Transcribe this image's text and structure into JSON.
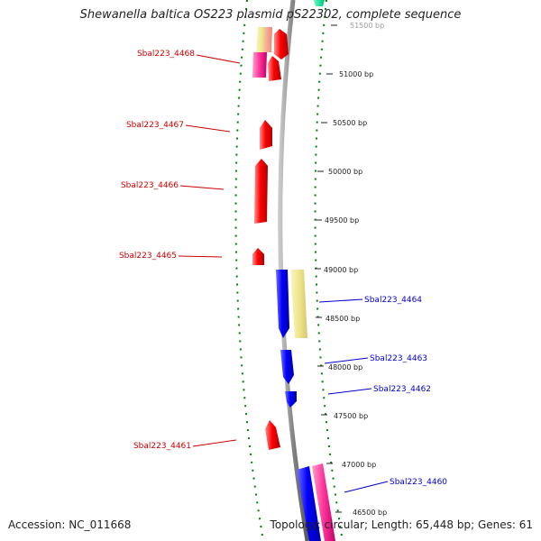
{
  "title": "Shewanella baltica OS223 plasmid pS22302, complete sequence",
  "accession": "Accession: NC_011668",
  "summary": "Topology: circular; Length: 65,448 bp; Genes: 61",
  "colors": {
    "forward": "#ff0000",
    "reverse": "#0000ff",
    "pink": "#ff3399",
    "khaki": "#f0e68c",
    "backbone": "#808080",
    "grid": "#008000"
  },
  "ticks": [
    {
      "label": "51500 bp"
    },
    {
      "label": "51000 bp"
    },
    {
      "label": "50500 bp"
    },
    {
      "label": "50000 bp"
    },
    {
      "label": "49500 bp"
    },
    {
      "label": "49000 bp"
    },
    {
      "label": "48500 bp"
    },
    {
      "label": "48000 bp"
    },
    {
      "label": "47500 bp"
    },
    {
      "label": "47000 bp"
    },
    {
      "label": "46500 bp"
    }
  ],
  "left_labels": [
    {
      "text": "Sbal223_4468"
    },
    {
      "text": "Sbal223_4467"
    },
    {
      "text": "Sbal223_4466"
    },
    {
      "text": "Sbal223_4465"
    },
    {
      "text": "Sbal223_4461"
    }
  ],
  "right_labels": [
    {
      "text": "Sbal223_4464"
    },
    {
      "text": "Sbal223_4463"
    },
    {
      "text": "Sbal223_4462"
    },
    {
      "text": "Sbal223_4460"
    }
  ]
}
